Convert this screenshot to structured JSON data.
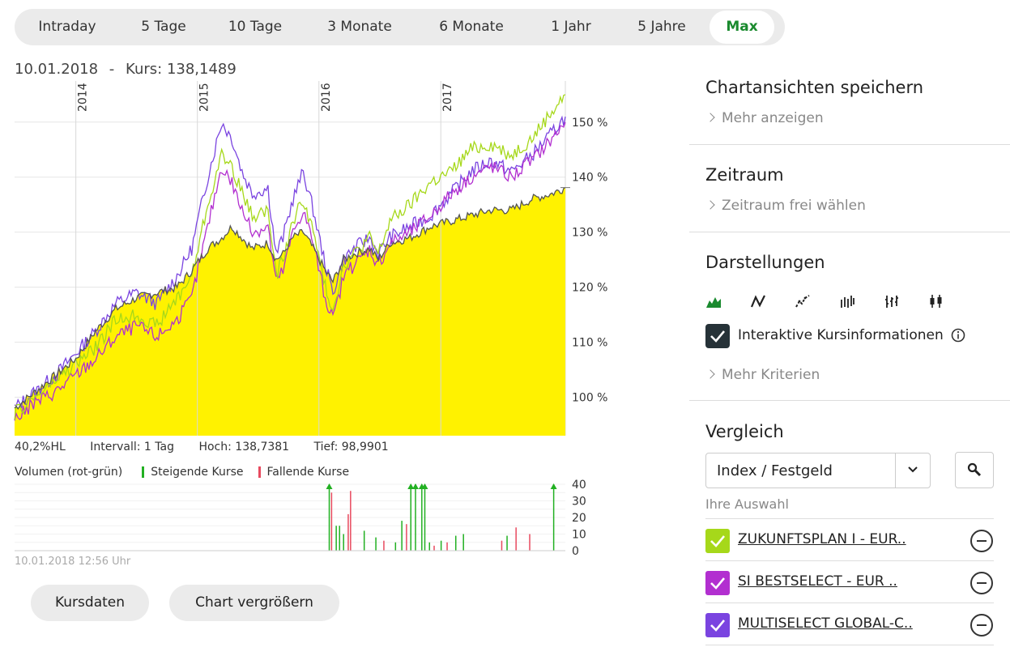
{
  "tabs": [
    {
      "label": "Intraday",
      "active": false
    },
    {
      "label": "5 Tage",
      "active": false
    },
    {
      "label": "10 Tage",
      "active": false
    },
    {
      "label": "3 Monate",
      "active": false
    },
    {
      "label": "6 Monate",
      "active": false
    },
    {
      "label": "1 Jahr",
      "active": false
    },
    {
      "label": "5 Jahre",
      "active": false
    },
    {
      "label": "Max",
      "active": true
    }
  ],
  "header": {
    "date": "10.01.2018",
    "separator": "-",
    "kurs_label": "Kurs:",
    "kurs_value": "138,1489"
  },
  "stats": {
    "hl": "40,2%HL",
    "interval": "Intervall: 1 Tag",
    "high": "Hoch: 138,7381",
    "low": "Tief: 98,9901"
  },
  "volume_legend": {
    "title": "Volumen (rot-grün)",
    "up": "Steigende Kurse",
    "down": "Fallende Kurse"
  },
  "timestamp": "10.01.2018 12:56 Uhr",
  "buttons": {
    "kursdaten": "Kursdaten",
    "vergroessern": "Chart vergrößern"
  },
  "sidebar": {
    "save_title": "Chartansichten speichern",
    "save_more": "Mehr anzeigen",
    "zeitraum_title": "Zeitraum",
    "zeitraum_more": "Zeitraum frei wählen",
    "darst_title": "Darstellungen",
    "interactive_label": "Interaktive Kursinformationen",
    "more_criteria": "Mehr Kriterien",
    "vergleich_title": "Vergleich",
    "select_value": "Index / Festgeld",
    "ihre_auswahl": "Ihre Auswahl",
    "compare_items": [
      {
        "name": "ZUKUNFTSPLAN I - EUR..",
        "color": "#a6d81a"
      },
      {
        "name": "SI BESTSELECT - EUR ..",
        "color": "#b22fd0"
      },
      {
        "name": "MULTISELECT GLOBAL-C..",
        "color": "#7a44e0"
      }
    ]
  },
  "colors": {
    "area_fill": "#fff200",
    "main_line": "#555555",
    "accent_green": "#1a8a2e",
    "volume_up": "#22b022",
    "volume_down": "#e84a5f"
  },
  "chart_data": {
    "type": "line",
    "title": "",
    "x_axis": {
      "type": "date",
      "start": "2013-07-01",
      "end": "2018-01-10"
    },
    "year_ticks": [
      {
        "label": "2014",
        "x": "2014-01-01"
      },
      {
        "label": "2015",
        "x": "2015-01-01"
      },
      {
        "label": "2016",
        "x": "2016-01-01"
      },
      {
        "label": "2017",
        "x": "2017-01-01"
      }
    ],
    "y_axis": {
      "unit": "%",
      "ticks": [
        100,
        110,
        120,
        130,
        140,
        150
      ],
      "tick_labels": [
        "100 %",
        "110 %",
        "120 %",
        "130 %",
        "140 %",
        "150 %"
      ],
      "range": [
        93,
        156
      ],
      "position": "right"
    },
    "series": [
      {
        "color": "#555555",
        "fill": "#fff200",
        "style": "area",
        "points": [
          [
            "2013-07-01",
            98
          ],
          [
            "2013-09-01",
            101
          ],
          [
            "2013-11-01",
            104
          ],
          [
            "2014-01-01",
            107
          ],
          [
            "2014-03-01",
            112
          ],
          [
            "2014-05-01",
            116
          ],
          [
            "2014-07-01",
            118
          ],
          [
            "2014-09-01",
            119
          ],
          [
            "2014-11-01",
            120
          ],
          [
            "2014-12-15",
            123
          ],
          [
            "2015-02-01",
            127
          ],
          [
            "2015-03-15",
            129
          ],
          [
            "2015-04-15",
            131
          ],
          [
            "2015-05-15",
            129
          ],
          [
            "2015-06-15",
            127
          ],
          [
            "2015-08-01",
            128
          ],
          [
            "2015-08-25",
            125
          ],
          [
            "2015-09-15",
            126
          ],
          [
            "2015-10-15",
            129
          ],
          [
            "2015-11-15",
            130
          ],
          [
            "2015-12-15",
            127
          ],
          [
            "2016-01-20",
            123
          ],
          [
            "2016-02-12",
            121
          ],
          [
            "2016-03-15",
            125
          ],
          [
            "2016-04-15",
            126
          ],
          [
            "2016-06-01",
            127
          ],
          [
            "2016-06-27",
            125
          ],
          [
            "2016-08-01",
            128
          ],
          [
            "2016-10-01",
            129
          ],
          [
            "2016-12-01",
            131
          ],
          [
            "2017-02-01",
            132
          ],
          [
            "2017-04-01",
            133
          ],
          [
            "2017-06-01",
            134
          ],
          [
            "2017-08-01",
            134
          ],
          [
            "2017-10-01",
            136
          ],
          [
            "2017-12-01",
            137
          ],
          [
            "2018-01-10",
            138.1
          ]
        ]
      },
      {
        "color": "#a6d81a",
        "style": "line",
        "points": [
          [
            "2013-07-01",
            97
          ],
          [
            "2013-09-01",
            100
          ],
          [
            "2013-11-01",
            103
          ],
          [
            "2014-01-01",
            106
          ],
          [
            "2014-03-01",
            109
          ],
          [
            "2014-05-01",
            114
          ],
          [
            "2014-07-01",
            115
          ],
          [
            "2014-09-01",
            113
          ],
          [
            "2014-11-01",
            118
          ],
          [
            "2014-12-15",
            122
          ],
          [
            "2015-02-01",
            135
          ],
          [
            "2015-03-15",
            144
          ],
          [
            "2015-04-15",
            142
          ],
          [
            "2015-05-15",
            137
          ],
          [
            "2015-06-15",
            133
          ],
          [
            "2015-08-01",
            134
          ],
          [
            "2015-08-25",
            122
          ],
          [
            "2015-09-15",
            125
          ],
          [
            "2015-10-15",
            132
          ],
          [
            "2015-11-15",
            136
          ],
          [
            "2015-12-15",
            130
          ],
          [
            "2016-01-20",
            120
          ],
          [
            "2016-02-12",
            116
          ],
          [
            "2016-03-15",
            124
          ],
          [
            "2016-04-15",
            126
          ],
          [
            "2016-06-01",
            129
          ],
          [
            "2016-06-27",
            126
          ],
          [
            "2016-08-01",
            132
          ],
          [
            "2016-10-01",
            135
          ],
          [
            "2016-12-01",
            139
          ],
          [
            "2017-02-01",
            141
          ],
          [
            "2017-04-01",
            145
          ],
          [
            "2017-06-01",
            146
          ],
          [
            "2017-08-01",
            144
          ],
          [
            "2017-10-01",
            147
          ],
          [
            "2017-12-01",
            152
          ],
          [
            "2018-01-10",
            155
          ]
        ]
      },
      {
        "color": "#b22fd0",
        "style": "line",
        "points": [
          [
            "2013-07-01",
            96
          ],
          [
            "2013-09-01",
            99
          ],
          [
            "2013-11-01",
            101
          ],
          [
            "2014-01-01",
            104
          ],
          [
            "2014-03-01",
            107
          ],
          [
            "2014-05-01",
            111
          ],
          [
            "2014-07-01",
            113
          ],
          [
            "2014-09-01",
            111
          ],
          [
            "2014-11-01",
            114
          ],
          [
            "2014-12-15",
            118
          ],
          [
            "2015-02-01",
            131
          ],
          [
            "2015-03-15",
            142
          ],
          [
            "2015-04-15",
            139
          ],
          [
            "2015-05-15",
            134
          ],
          [
            "2015-06-15",
            130
          ],
          [
            "2015-08-01",
            131
          ],
          [
            "2015-08-25",
            121
          ],
          [
            "2015-09-15",
            123
          ],
          [
            "2015-10-15",
            130
          ],
          [
            "2015-11-15",
            134
          ],
          [
            "2015-12-15",
            128
          ],
          [
            "2016-01-20",
            118
          ],
          [
            "2016-02-12",
            114
          ],
          [
            "2016-03-15",
            122
          ],
          [
            "2016-04-15",
            124
          ],
          [
            "2016-06-01",
            127
          ],
          [
            "2016-06-27",
            124
          ],
          [
            "2016-08-01",
            128
          ],
          [
            "2016-10-01",
            130
          ],
          [
            "2016-12-01",
            133
          ],
          [
            "2017-02-01",
            137
          ],
          [
            "2017-04-01",
            140
          ],
          [
            "2017-06-01",
            142
          ],
          [
            "2017-08-01",
            140
          ],
          [
            "2017-10-01",
            143
          ],
          [
            "2017-12-01",
            147
          ],
          [
            "2018-01-10",
            150
          ]
        ]
      },
      {
        "color": "#7a44e0",
        "style": "line",
        "points": [
          [
            "2013-07-01",
            98
          ],
          [
            "2013-09-01",
            101
          ],
          [
            "2013-11-01",
            104
          ],
          [
            "2014-01-01",
            108
          ],
          [
            "2014-03-01",
            112
          ],
          [
            "2014-05-01",
            117
          ],
          [
            "2014-07-01",
            119
          ],
          [
            "2014-09-01",
            117
          ],
          [
            "2014-11-01",
            122
          ],
          [
            "2014-12-15",
            127
          ],
          [
            "2015-02-01",
            140
          ],
          [
            "2015-03-15",
            150
          ],
          [
            "2015-04-15",
            147
          ],
          [
            "2015-05-15",
            141
          ],
          [
            "2015-06-15",
            137
          ],
          [
            "2015-08-01",
            138
          ],
          [
            "2015-08-25",
            126
          ],
          [
            "2015-09-15",
            129
          ],
          [
            "2015-10-15",
            136
          ],
          [
            "2015-11-15",
            141
          ],
          [
            "2015-12-15",
            134
          ],
          [
            "2016-01-20",
            124
          ],
          [
            "2016-02-12",
            119
          ],
          [
            "2016-03-15",
            125
          ],
          [
            "2016-04-15",
            127
          ],
          [
            "2016-06-01",
            129
          ],
          [
            "2016-06-27",
            126
          ],
          [
            "2016-08-01",
            129
          ],
          [
            "2016-10-01",
            131
          ],
          [
            "2016-12-01",
            133
          ],
          [
            "2017-02-01",
            137
          ],
          [
            "2017-04-01",
            141
          ],
          [
            "2017-06-01",
            143
          ],
          [
            "2017-08-01",
            141
          ],
          [
            "2017-10-01",
            144
          ],
          [
            "2017-12-01",
            148
          ],
          [
            "2018-01-10",
            151
          ]
        ]
      }
    ],
    "volume": {
      "y_ticks": [
        0,
        10,
        20,
        30,
        40
      ],
      "y_range": [
        0,
        40
      ],
      "bars": [
        {
          "x": "2016-02-01",
          "value": 40,
          "dir": "up"
        },
        {
          "x": "2016-02-08",
          "value": 35,
          "dir": "down"
        },
        {
          "x": "2016-02-22",
          "value": 15,
          "dir": "up"
        },
        {
          "x": "2016-03-03",
          "value": 15,
          "dir": "up"
        },
        {
          "x": "2016-03-15",
          "value": 10,
          "dir": "up"
        },
        {
          "x": "2016-03-29",
          "value": 22,
          "dir": "down"
        },
        {
          "x": "2016-04-05",
          "value": 36,
          "dir": "down"
        },
        {
          "x": "2016-05-16",
          "value": 12,
          "dir": "up"
        },
        {
          "x": "2016-06-20",
          "value": 8,
          "dir": "up"
        },
        {
          "x": "2016-07-14",
          "value": 6,
          "dir": "down"
        },
        {
          "x": "2016-08-18",
          "value": 5,
          "dir": "up"
        },
        {
          "x": "2016-09-06",
          "value": 18,
          "dir": "up"
        },
        {
          "x": "2016-09-20",
          "value": 16,
          "dir": "down"
        },
        {
          "x": "2016-10-03",
          "value": 40,
          "dir": "up"
        },
        {
          "x": "2016-10-17",
          "value": 40,
          "dir": "up"
        },
        {
          "x": "2016-11-05",
          "value": 40,
          "dir": "up"
        },
        {
          "x": "2016-11-14",
          "value": 40,
          "dir": "up"
        },
        {
          "x": "2016-11-28",
          "value": 5,
          "dir": "up"
        },
        {
          "x": "2016-12-12",
          "value": 3,
          "dir": "down"
        },
        {
          "x": "2017-01-02",
          "value": 6,
          "dir": "up"
        },
        {
          "x": "2017-01-20",
          "value": 5,
          "dir": "down"
        },
        {
          "x": "2017-02-15",
          "value": 9,
          "dir": "up"
        },
        {
          "x": "2017-03-10",
          "value": 10,
          "dir": "up"
        },
        {
          "x": "2017-07-03",
          "value": 6,
          "dir": "down"
        },
        {
          "x": "2017-07-19",
          "value": 9,
          "dir": "up"
        },
        {
          "x": "2017-08-15",
          "value": 14,
          "dir": "down"
        },
        {
          "x": "2017-09-25",
          "value": 10,
          "dir": "down"
        },
        {
          "x": "2017-12-06",
          "value": 40,
          "dir": "up"
        }
      ]
    }
  }
}
